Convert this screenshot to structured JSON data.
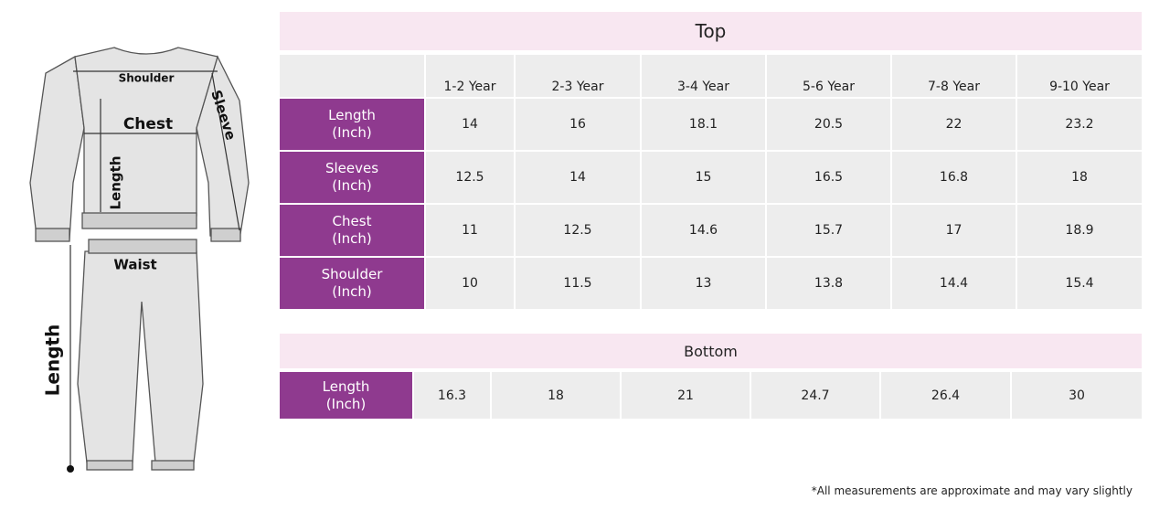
{
  "illustration": {
    "shoulder": "Shoulder",
    "chest": "Chest",
    "sleeve": "Sleeve",
    "top_length": "Length",
    "waist": "Waist",
    "bottom_length": "Length"
  },
  "top_table": {
    "title": "Top",
    "columns": [
      "1-2 Year",
      "2-3 Year",
      "3-4 Year",
      "5-6 Year",
      "7-8 Year",
      "9-10 Year"
    ],
    "rows": [
      {
        "label": "Length",
        "unit": "(Inch)",
        "values": [
          14,
          16,
          18.1,
          20.5,
          22,
          23.2
        ]
      },
      {
        "label": "Sleeves",
        "unit": "(Inch)",
        "values": [
          12.5,
          14,
          15,
          16.5,
          16.8,
          18
        ]
      },
      {
        "label": "Chest",
        "unit": "(Inch)",
        "values": [
          11,
          12.5,
          14.6,
          15.7,
          17,
          18.9
        ]
      },
      {
        "label": "Shoulder",
        "unit": "(Inch)",
        "values": [
          10,
          11.5,
          13,
          13.8,
          14.4,
          15.4
        ]
      }
    ]
  },
  "bottom_table": {
    "title": "Bottom",
    "rows": [
      {
        "label": "Length",
        "unit": "(Inch)",
        "values": [
          16.3,
          18,
          21,
          24.7,
          26.4,
          30
        ]
      }
    ]
  },
  "footnote": "*All measurements are approximate and may vary slightly"
}
